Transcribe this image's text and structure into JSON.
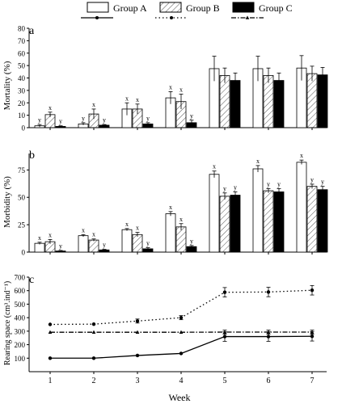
{
  "legend": {
    "items": [
      {
        "label": "Group A",
        "pattern": "open"
      },
      {
        "label": "Group B",
        "pattern": "hatched"
      },
      {
        "label": "Group C",
        "pattern": "solid"
      }
    ],
    "line_styles": [
      "solid-circle",
      "dotted-circle",
      "dashdot-triangle"
    ]
  },
  "colors": {
    "ink": "#000000",
    "hatch": "#555555",
    "background": "#ffffff"
  },
  "chart_data": [
    {
      "panel": "a",
      "type": "bar",
      "ylabel": "Mortality (%)",
      "ylim": [
        0,
        80
      ],
      "yticks": [
        0,
        10,
        20,
        30,
        40,
        50,
        60,
        70,
        80
      ],
      "categories": [
        "1",
        "2",
        "3",
        "4",
        "5",
        "6",
        "7"
      ],
      "series": [
        {
          "name": "Group A",
          "values": [
            1.5,
            3,
            15,
            24,
            47.5,
            47.5,
            48
          ],
          "errors": [
            1,
            1,
            5,
            5,
            10,
            10,
            10
          ],
          "letters": [
            "y",
            "y",
            "x",
            "x",
            "",
            "",
            ""
          ]
        },
        {
          "name": "Group B",
          "values": [
            10.5,
            11,
            15,
            21,
            42,
            42,
            43.5
          ],
          "errors": [
            2,
            4,
            4,
            6,
            6,
            6,
            6
          ],
          "letters": [
            "x",
            "x",
            "x",
            "x",
            "",
            "",
            ""
          ]
        },
        {
          "name": "Group C",
          "values": [
            1,
            2,
            3,
            4,
            38,
            38,
            42.5
          ],
          "errors": [
            0.5,
            0.5,
            1,
            2,
            6,
            6,
            6
          ],
          "letters": [
            "y",
            "y",
            "y",
            "y",
            "",
            "",
            ""
          ]
        }
      ]
    },
    {
      "panel": "b",
      "type": "bar",
      "ylabel": "Morbidity (%)",
      "ylim": [
        0,
        90
      ],
      "yticks": [
        0,
        25,
        50,
        75
      ],
      "categories": [
        "1",
        "2",
        "3",
        "4",
        "5",
        "6",
        "7"
      ],
      "series": [
        {
          "name": "Group A",
          "values": [
            8,
            15,
            20.5,
            35,
            71,
            76,
            82
          ],
          "errors": [
            1,
            1,
            1,
            2,
            3,
            3,
            2
          ],
          "letters": [
            "x",
            "x",
            "x",
            "x",
            "x",
            "x",
            "x"
          ]
        },
        {
          "name": "Group B",
          "values": [
            9.5,
            11,
            16,
            23,
            51,
            56,
            60
          ],
          "errors": [
            2,
            1,
            2,
            3,
            3,
            2,
            2
          ],
          "letters": [
            "x",
            "x",
            "x",
            "x",
            "y",
            "y",
            "y"
          ]
        },
        {
          "name": "Group C",
          "values": [
            1,
            2,
            3,
            5,
            52,
            55,
            57
          ],
          "errors": [
            0.5,
            0.5,
            1,
            1,
            3,
            3,
            3
          ],
          "letters": [
            "y",
            "y",
            "y",
            "y",
            "y",
            "y",
            "y"
          ]
        }
      ]
    },
    {
      "panel": "c",
      "type": "line",
      "ylabel": "Rearing space (cm³.ind⁻¹)",
      "xlabel": "Week",
      "ylim": [
        0,
        700
      ],
      "yticks": [
        100,
        200,
        300,
        400,
        500,
        600,
        700
      ],
      "x": [
        1,
        2,
        3,
        4,
        5,
        6,
        7
      ],
      "series": [
        {
          "name": "Group A",
          "values": [
            100,
            100,
            120,
            135,
            260,
            260,
            262
          ],
          "errors": [
            0,
            0,
            0,
            0,
            35,
            35,
            35
          ],
          "style": "solid-circle"
        },
        {
          "name": "Group B",
          "values": [
            350,
            352,
            375,
            400,
            588,
            590,
            603
          ],
          "errors": [
            0,
            0,
            15,
            15,
            35,
            35,
            35
          ],
          "style": "dotted-circle"
        },
        {
          "name": "Group C",
          "values": [
            292,
            292,
            292,
            292,
            293,
            293,
            293
          ],
          "errors": [
            0,
            0,
            0,
            0,
            15,
            15,
            15
          ],
          "style": "dashdot-triangle"
        }
      ]
    }
  ]
}
